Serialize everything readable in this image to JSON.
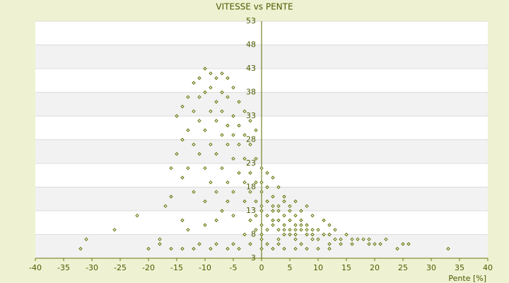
{
  "chart_data": {
    "type": "scatter",
    "title": "VITESSE vs PENTE",
    "x_label": "Pente [%]",
    "color": "#5f6f00",
    "xlim": [
      -40,
      40
    ],
    "xticks": [
      -40,
      -35,
      -30,
      -25,
      -20,
      -15,
      -10,
      -5,
      0,
      5,
      10,
      15,
      20,
      25,
      30,
      35,
      40
    ],
    "ylim": [
      3,
      53
    ],
    "yticks": [
      3,
      8,
      13,
      18,
      23,
      28,
      33,
      38,
      43,
      48,
      53
    ],
    "grid": true,
    "x": [
      -10,
      -9,
      -11,
      -8,
      -7,
      -6,
      -12,
      -9,
      -10,
      -7,
      -5,
      -13,
      -11,
      -8,
      -6,
      -4,
      -14,
      -12,
      -9,
      -7,
      -5,
      -3,
      -15,
      -11,
      -8,
      -6,
      -4,
      -2,
      -13,
      -10,
      -7,
      -5,
      -3,
      -1,
      -14,
      -12,
      -9,
      -6,
      -4,
      -2,
      -15,
      -11,
      -8,
      -5,
      -3,
      -1,
      -16,
      -13,
      -10,
      -7,
      -4,
      -2,
      -14,
      -9,
      -6,
      -3,
      -1,
      -12,
      -8,
      -5,
      -2,
      -16,
      -10,
      -6,
      -3,
      -1,
      0,
      1,
      2,
      0,
      1,
      3,
      0,
      2,
      4,
      1,
      0,
      3,
      0,
      1,
      2,
      0,
      1,
      0,
      0,
      1,
      0,
      -1,
      -2,
      -1,
      -3,
      2,
      3,
      4,
      5,
      6,
      7,
      3,
      4,
      5,
      6,
      7,
      8,
      9,
      10,
      2,
      3,
      4,
      5,
      6,
      7,
      8,
      5,
      6,
      8,
      9,
      11,
      12,
      4,
      3,
      6,
      9,
      10,
      13,
      14,
      2,
      5,
      7,
      9,
      11,
      12,
      13,
      4,
      6,
      8,
      15,
      16,
      17,
      18,
      19,
      20,
      21,
      22,
      25,
      26,
      24,
      33,
      19,
      16,
      14,
      12,
      -20,
      -18,
      -16,
      -14,
      -12,
      -11,
      -9,
      -8,
      -6,
      -5,
      -4,
      -2,
      2,
      4,
      6,
      8,
      10,
      12,
      3,
      7,
      -32,
      -31,
      -26,
      -22,
      -17,
      -18,
      -13,
      -14,
      -7,
      -5,
      -10,
      -8
    ],
    "values": [
      43,
      42,
      41,
      41,
      42,
      41,
      40,
      39,
      38,
      38,
      39,
      37,
      37,
      36,
      37,
      36,
      35,
      34,
      34,
      34,
      33,
      34,
      33,
      32,
      32,
      31,
      31,
      32,
      30,
      30,
      29,
      29,
      29,
      30,
      28,
      27,
      27,
      27,
      27,
      27,
      25,
      25,
      25,
      24,
      24,
      24,
      22,
      22,
      22,
      22,
      21,
      21,
      20,
      19,
      19,
      19,
      19,
      17,
      17,
      17,
      17,
      16,
      15,
      15,
      15,
      15,
      22,
      21,
      20,
      19,
      18,
      18,
      17,
      16,
      16,
      15,
      14,
      14,
      13,
      12,
      11,
      10,
      9,
      8,
      7,
      6,
      5,
      12,
      11,
      9,
      8,
      14,
      13,
      12,
      13,
      12,
      11,
      11,
      10,
      11,
      10,
      10,
      10,
      9,
      9,
      10,
      9,
      9,
      9,
      9,
      9,
      9,
      8,
      8,
      8,
      8,
      8,
      8,
      8,
      7,
      7,
      7,
      7,
      7,
      7,
      13,
      14,
      13,
      12,
      11,
      10,
      9,
      15,
      15,
      14,
      8,
      7,
      7,
      7,
      7,
      6,
      6,
      7,
      6,
      6,
      5,
      5,
      6,
      6,
      6,
      6,
      5,
      6,
      5,
      5,
      5,
      6,
      5,
      6,
      5,
      6,
      5,
      6,
      5,
      5,
      5,
      5,
      5,
      5,
      6,
      6,
      5,
      7,
      9,
      12,
      14,
      7,
      9,
      11,
      13,
      12,
      10,
      11
    ]
  }
}
